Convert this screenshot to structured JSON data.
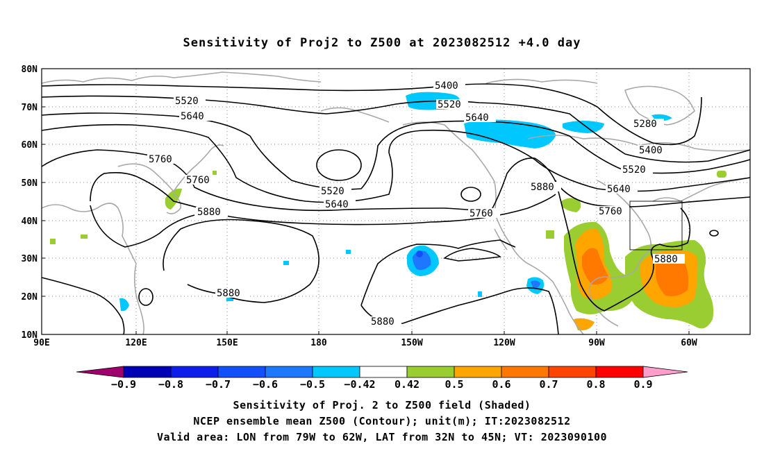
{
  "title": "Sensitivity of Proj2 to Z500 at 2023082512 +4.0 day",
  "map": {
    "lat_labels": [
      "80N",
      "70N",
      "60N",
      "50N",
      "40N",
      "30N",
      "20N",
      "10N"
    ],
    "lon_labels": [
      "90E",
      "120E",
      "150E",
      "180",
      "150W",
      "120W",
      "90W",
      "60W"
    ],
    "valid_box": "LON 79W-62W, LAT 32N-45N"
  },
  "contour_labels": [
    {
      "text": "5400",
      "id": "c5400a"
    },
    {
      "text": "5520",
      "id": "c5520a"
    },
    {
      "text": "5640",
      "id": "c5640a"
    },
    {
      "text": "5760",
      "id": "c5760a"
    },
    {
      "text": "5760",
      "id": "c5760b"
    },
    {
      "text": "5880",
      "id": "c5880a"
    },
    {
      "text": "5520",
      "id": "c5520b"
    },
    {
      "text": "5640",
      "id": "c5640b"
    },
    {
      "text": "5880",
      "id": "c5880b"
    },
    {
      "text": "5880",
      "id": "c5880c"
    },
    {
      "text": "5520",
      "id": "c5520c"
    },
    {
      "text": "5640",
      "id": "c5640c"
    },
    {
      "text": "5760",
      "id": "c5760c"
    },
    {
      "text": "5880",
      "id": "c5880d"
    },
    {
      "text": "5280",
      "id": "c5280"
    },
    {
      "text": "5400",
      "id": "c5400b"
    },
    {
      "text": "5520",
      "id": "c5520d"
    },
    {
      "text": "5640",
      "id": "c5640d"
    },
    {
      "text": "5760",
      "id": "c5760d"
    },
    {
      "text": "5880",
      "id": "c5880e"
    }
  ],
  "colorbar": {
    "labels": [
      "-0.9",
      "-0.8",
      "-0.7",
      "-0.6",
      "-0.5",
      "-0.42",
      "0.42",
      "0.5",
      "0.6",
      "0.7",
      "0.8",
      "0.9"
    ],
    "colors": [
      "#a0006e",
      "#0000b4",
      "#0d1eeb",
      "#1450fa",
      "#1e78ff",
      "#00c8ff",
      "#ffffff",
      "#9acd32",
      "#ffa500",
      "#ff7800",
      "#ff4500",
      "#ff0000",
      "#ff9ecb"
    ]
  },
  "footer": {
    "line1": "Sensitivity of Proj. 2 to Z500 field (Shaded)",
    "line2": "NCEP ensemble mean Z500 (Contour); unit(m); IT:2023082512",
    "line3": "Valid area: LON from 79W to 62W, LAT from 32N to 45N; VT: 2023090100"
  }
}
